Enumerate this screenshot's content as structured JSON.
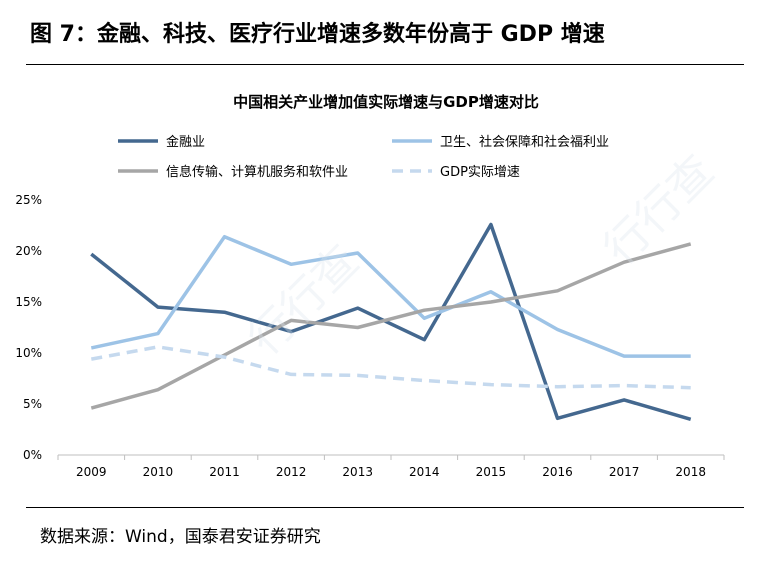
{
  "figure": {
    "title": "图 7：金融、科技、医疗行业增速多数年份高于 GDP 增速",
    "source": "数据来源：Wind，国泰君安证券研究",
    "watermark": "行行查"
  },
  "colors": {
    "finance": "#44688f",
    "health": "#9dc3e6",
    "it": "#a6a6a6",
    "gdp": "#c5d9ee",
    "axis": "#bfbfbf",
    "text": "#000000"
  },
  "chart_data": {
    "type": "line",
    "title": "中国相关产业增加值实际增速与GDP增速对比",
    "xlabel": "",
    "ylabel": "",
    "ylim": [
      0,
      25
    ],
    "yticks": [
      "0%",
      "5%",
      "10%",
      "15%",
      "20%",
      "25%"
    ],
    "ytick_values": [
      0,
      5,
      10,
      15,
      20,
      25
    ],
    "categories": [
      "2009",
      "2010",
      "2011",
      "2012",
      "2013",
      "2014",
      "2015",
      "2016",
      "2017",
      "2018"
    ],
    "legend_position": "top",
    "series": [
      {
        "key": "finance",
        "name": "金融业",
        "style": "solid",
        "values": [
          19.7,
          14.5,
          14.0,
          12.1,
          14.4,
          11.3,
          22.6,
          3.6,
          5.4,
          3.5
        ]
      },
      {
        "key": "health",
        "name": "卫生、社会保障和社会福利业",
        "style": "solid",
        "values": [
          10.5,
          11.9,
          21.4,
          18.7,
          19.8,
          13.4,
          16.0,
          12.3,
          9.7,
          9.7
        ]
      },
      {
        "key": "it",
        "name": "信息传输、计算机服务和软件业",
        "style": "solid",
        "values": [
          4.6,
          6.4,
          9.8,
          13.2,
          12.5,
          14.2,
          15.0,
          16.1,
          18.9,
          20.7
        ]
      },
      {
        "key": "gdp",
        "name": "GDP实际增速",
        "style": "dashed",
        "values": [
          9.4,
          10.6,
          9.6,
          7.9,
          7.8,
          7.3,
          6.9,
          6.7,
          6.8,
          6.6
        ]
      }
    ]
  }
}
